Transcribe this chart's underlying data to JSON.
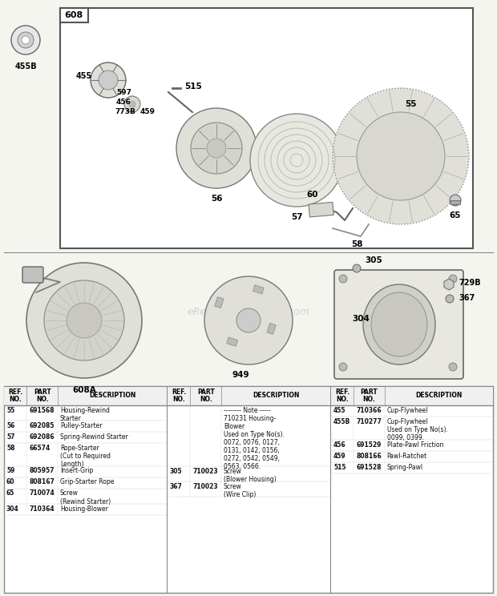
{
  "bg_color": "#f5f5f0",
  "watermark": "eReplacementParts.com",
  "rows1": [
    [
      "55",
      "691568",
      "Housing-Rewind\nStarter"
    ],
    [
      "56",
      "692085",
      "Pulley-Starter"
    ],
    [
      "57",
      "692086",
      "Spring-Rewind Starter"
    ],
    [
      "58",
      "66574",
      "Rope-Starter\n(Cut to Required\nLength)"
    ],
    [
      "59",
      "805957",
      "Insert-Grip"
    ],
    [
      "60",
      "808167",
      "Grip-Starter Rope"
    ],
    [
      "65",
      "710074",
      "Screw\n(Rewind Starter)"
    ],
    [
      "304",
      "710364",
      "Housing-Blower"
    ]
  ],
  "rows2": [
    [
      "",
      "",
      "-------- Note -----\n710231 Housing-\nBlower\nUsed on Type No(s).\n0072, 0076, 0127,\n0131, 0142, 0156,\n0272, 0542, 0549,\n0563, 0566."
    ],
    [
      "305",
      "710023",
      "Screw\n(Blower Housing)"
    ],
    [
      "367",
      "710023",
      "Screw\n(Wire Clip)"
    ]
  ],
  "rows3": [
    [
      "455",
      "710366",
      "Cup-Flywheel"
    ],
    [
      "455B",
      "710277",
      "Cup-Flywheel\nUsed on Type No(s).\n0099, 0399."
    ],
    [
      "456",
      "691529",
      "Plate-Pawl Friction"
    ],
    [
      "459",
      "808166",
      "Pawl-Ratchet"
    ],
    [
      "515",
      "691528",
      "Spring-Pawl"
    ]
  ]
}
